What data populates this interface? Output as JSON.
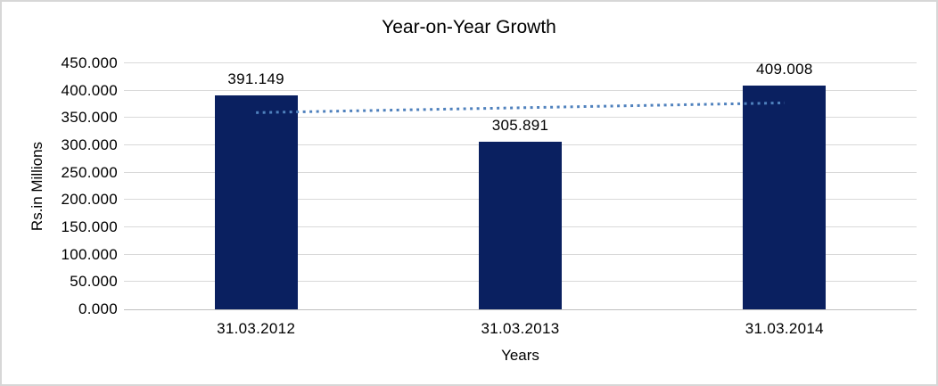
{
  "chart_data": {
    "type": "bar",
    "title": "Year-on-Year Growth",
    "xlabel": "Years",
    "ylabel": "Rs.in Millions",
    "categories": [
      "31.03.2012",
      "31.03.2013",
      "31.03.2014"
    ],
    "values": [
      391.149,
      305.891,
      409.008
    ],
    "data_labels": [
      "391.149",
      "305.891",
      "409.008"
    ],
    "y_ticks": [
      {
        "value": 450,
        "label": "450.000"
      },
      {
        "value": 400,
        "label": "400.000"
      },
      {
        "value": 350,
        "label": "350.000"
      },
      {
        "value": 300,
        "label": "300.000"
      },
      {
        "value": 250,
        "label": "250.000"
      },
      {
        "value": 200,
        "label": "200.000"
      },
      {
        "value": 150,
        "label": "150.000"
      },
      {
        "value": 100,
        "label": "100.000"
      },
      {
        "value": 50,
        "label": "50.000"
      },
      {
        "value": 0,
        "label": "0.000"
      }
    ],
    "ylim": [
      0,
      450
    ],
    "grid": true,
    "legend": "none",
    "trendline": {
      "type": "linear",
      "style": "dotted"
    },
    "colors": {
      "bar": "#0A2060",
      "trendline": "#4F81BD",
      "gridline": "#D9D9D9",
      "axis_line": "#BFBFBF",
      "text": "#000000",
      "border": "#D7D7D7"
    }
  }
}
